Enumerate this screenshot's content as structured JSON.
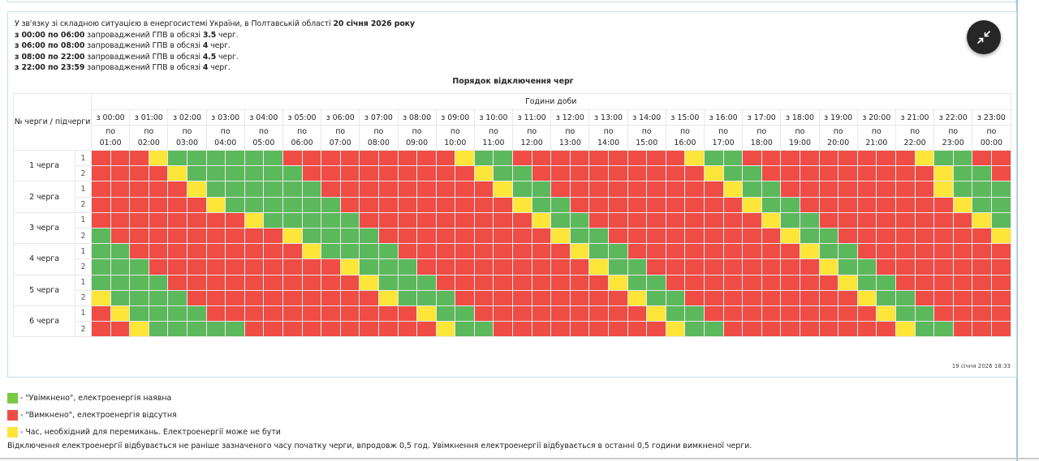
{
  "notice": {
    "intro": "У зв'язку зі складною ситуацією в енергосистемі України, в Полтавській області ",
    "date": "20 січня 2026 року",
    "periods": [
      {
        "range": "з 00:00 по 06:00",
        "text": " запроваджений ГПВ в обсязі ",
        "amount": "3.5",
        "unit": " черг."
      },
      {
        "range": "з 06:00 по 08:00",
        "text": " запроваджений ГПВ в обсязі ",
        "amount": "4",
        "unit": " черг."
      },
      {
        "range": "з 08:00 по 22:00",
        "text": " запроваджений ГПВ в обсязі ",
        "amount": "4.5",
        "unit": " черг."
      },
      {
        "range": "з 22:00 по 23:59",
        "text": " запроваджений ГПВ в обсязі ",
        "amount": "4",
        "unit": " черг."
      }
    ]
  },
  "fab": {
    "icon": "collapse-arrows-icon"
  },
  "table": {
    "title": "Порядок відключення черг",
    "queue_header": "№ черги / підчерги",
    "hours_header": "Години доби",
    "hours": [
      {
        "from": "з 00:00",
        "to_prefix": "по",
        "to": "01:00"
      },
      {
        "from": "з 01:00",
        "to_prefix": "по",
        "to": "02:00"
      },
      {
        "from": "з 02:00",
        "to_prefix": "по",
        "to": "03:00"
      },
      {
        "from": "з 03:00",
        "to_prefix": "по",
        "to": "04:00"
      },
      {
        "from": "з 04:00",
        "to_prefix": "по",
        "to": "05:00"
      },
      {
        "from": "з 05:00",
        "to_prefix": "по",
        "to": "06:00"
      },
      {
        "from": "з 06:00",
        "to_prefix": "по",
        "to": "07:00"
      },
      {
        "from": "з 07:00",
        "to_prefix": "по",
        "to": "08:00"
      },
      {
        "from": "з 08:00",
        "to_prefix": "по",
        "to": "09:00"
      },
      {
        "from": "з 09:00",
        "to_prefix": "по",
        "to": "10:00"
      },
      {
        "from": "з 10:00",
        "to_prefix": "по",
        "to": "11:00"
      },
      {
        "from": "з 11:00",
        "to_prefix": "по",
        "to": "12:00"
      },
      {
        "from": "з 12:00",
        "to_prefix": "по",
        "to": "13:00"
      },
      {
        "from": "з 13:00",
        "to_prefix": "по",
        "to": "14:00"
      },
      {
        "from": "з 14:00",
        "to_prefix": "по",
        "to": "15:00"
      },
      {
        "from": "з 15:00",
        "to_prefix": "по",
        "to": "16:00"
      },
      {
        "from": "з 16:00",
        "to_prefix": "по",
        "to": "17:00"
      },
      {
        "from": "з 17:00",
        "to_prefix": "по",
        "to": "18:00"
      },
      {
        "from": "з 18:00",
        "to_prefix": "по",
        "to": "19:00"
      },
      {
        "from": "з 19:00",
        "to_prefix": "по",
        "to": "20:00"
      },
      {
        "from": "з 20:00",
        "to_prefix": "по",
        "to": "21:00"
      },
      {
        "from": "з 21:00",
        "to_prefix": "по",
        "to": "22:00"
      },
      {
        "from": "з 22:00",
        "to_prefix": "по",
        "to": "23:00"
      },
      {
        "from": "з 23:00",
        "to_prefix": "по",
        "to": "00:00"
      }
    ],
    "status_colors": {
      "G": "#5cb85c",
      "R": "#ef4c45",
      "Y": "#fde53a"
    },
    "queues": [
      {
        "name": "1 черга",
        "subqueues": [
          {
            "label": "1",
            "slots": "RRRYGGGGGGRRRRRRRRRYGGRRRRRRRRRYGGRRRRRRRRRYGGRR"
          },
          {
            "label": "2",
            "slots": "RRRRYGGGGGGRRRRRRRRRYGGRRRRRRRRRYGGRRRRRRRRRYGGR"
          }
        ]
      },
      {
        "name": "2 черга",
        "subqueues": [
          {
            "label": "1",
            "slots": "RRRRRYGGGGGGRRRRRRRRRYGGRRRRRRRRRYGGRRRRRRRRYGGG"
          },
          {
            "label": "2",
            "slots": "RRRRRRYGGGGGGRRRRRRRRRYGGRRRRRRRRRYGGRRRRRRRRYGG"
          }
        ]
      },
      {
        "name": "3 черга",
        "subqueues": [
          {
            "label": "1",
            "slots": "RRRRRRRRYGGGGGRRRRRRRRRYGGRRRRRRRRRYGGRRRRRRRRYG"
          },
          {
            "label": "2",
            "slots": "GRRRRRRRRRYGGGGRRRRRRRRRYGGRRRRRRRRRYGGRRRRRRRRY"
          }
        ]
      },
      {
        "name": "4 черга",
        "subqueues": [
          {
            "label": "1",
            "slots": "GGRRRRRRRRRYGGGGRRRRRRRRRYGGRRRRRRRRRYGGRRRRRRRR"
          },
          {
            "label": "2",
            "slots": "GGGRRRRRRRRRRYGGGRRRRRRRRRYGGRRRRRRRRRYGGRRRRRRR"
          }
        ]
      },
      {
        "name": "5 черга",
        "subqueues": [
          {
            "label": "1",
            "slots": "GGGGRRRRRRRRRRYGGGRRRRRRRRRYGGRRRRRRRRRYGGRRRRRR"
          },
          {
            "label": "2",
            "slots": "YGGGGRRRRRRRRRRYGGGRRRRRRRRRYGGRRRRRRRRRYGGRRRRR"
          }
        ]
      },
      {
        "name": "6 черга",
        "subqueues": [
          {
            "label": "1",
            "slots": "RYGGGGRRRRRRRRRRRYGGRRRRRRRRRYGGRRRRRRRRRYGGRRRR"
          },
          {
            "label": "2",
            "slots": "RRYGGGGGRRRRRRRRRRYGGRRRRRRRRRYGGRRRRRRRRRYGGRRR"
          }
        ]
      }
    ]
  },
  "updated": "19 січня 2026 18:33",
  "legend": [
    {
      "color": "#7ac943",
      "text": "- \"Увімкнено\", електроенергія наявна"
    },
    {
      "color": "#ef4c45",
      "text": "- \"Вимкнено\", електроенергія відсутня"
    },
    {
      "color": "#fde53a",
      "text": "- Час, необхідний для перемикань. Електроенергії може не бути"
    }
  ],
  "footnote": "Відключення електроенергії відбувається не раніше зазначеного часу початку черги, впродовж 0,5 год. Увімкнення електроенергії відбувається в останні 0,5 години вимкненої черги."
}
